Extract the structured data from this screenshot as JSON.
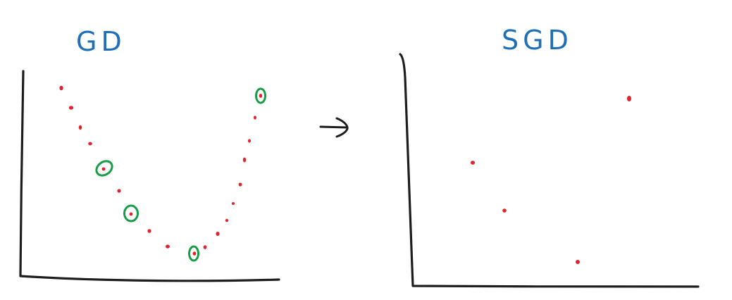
{
  "panels": [
    {
      "id": "gd",
      "title": "GD"
    },
    {
      "id": "sgd",
      "title": "SGD"
    }
  ],
  "colors": {
    "title": "#1f6fb6",
    "axis": "#1d1d1d",
    "point": "#e0242e",
    "highlight": "#179c47"
  },
  "icons": {
    "transition": "right-arrow-icon"
  }
}
